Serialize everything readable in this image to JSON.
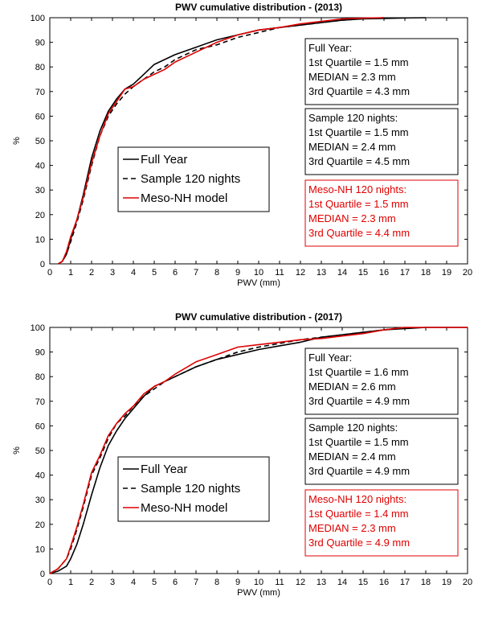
{
  "chart_data": [
    {
      "type": "line",
      "title": "PWV cumulative distribution - (2013)",
      "xlabel": "PWV (mm)",
      "ylabel": "%",
      "xlim": [
        0,
        20
      ],
      "ylim": [
        0,
        100
      ],
      "xticks": [
        "0",
        "1",
        "2",
        "3",
        "4",
        "5",
        "6",
        "7",
        "8",
        "9",
        "10",
        "11",
        "12",
        "13",
        "14",
        "15",
        "16",
        "17",
        "18",
        "19",
        "20"
      ],
      "yticks": [
        "0",
        "10",
        "20",
        "30",
        "40",
        "50",
        "60",
        "70",
        "80",
        "90",
        "100"
      ],
      "grid": false,
      "legend_position": "center-left",
      "legend": [
        "Full Year",
        "Sample 120 nights",
        "Meso-NH model"
      ],
      "series": [
        {
          "name": "Full Year",
          "color": "#000000",
          "dash": "solid",
          "points": [
            [
              0.4,
              0
            ],
            [
              0.6,
              1
            ],
            [
              0.8,
              4
            ],
            [
              1.0,
              10
            ],
            [
              1.3,
              18
            ],
            [
              1.6,
              28
            ],
            [
              2.0,
              43
            ],
            [
              2.4,
              54
            ],
            [
              2.8,
              62
            ],
            [
              3.2,
              67
            ],
            [
              3.6,
              71
            ],
            [
              4.0,
              73
            ],
            [
              4.5,
              77
            ],
            [
              5.0,
              81
            ],
            [
              5.5,
              83
            ],
            [
              6.0,
              85
            ],
            [
              7.0,
              88
            ],
            [
              8.0,
              91
            ],
            [
              9.0,
              93
            ],
            [
              10.0,
              95
            ],
            [
              11.0,
              96
            ],
            [
              12.0,
              97
            ],
            [
              13.0,
              98
            ],
            [
              14.0,
              99
            ],
            [
              15.0,
              99.5
            ],
            [
              16.0,
              99.7
            ],
            [
              17.0,
              99.9
            ],
            [
              18.0,
              100
            ]
          ]
        },
        {
          "name": "Sample 120 nights",
          "color": "#000000",
          "dash": "dashed",
          "points": [
            [
              0.4,
              0
            ],
            [
              0.6,
              1
            ],
            [
              0.8,
              4
            ],
            [
              1.0,
              9
            ],
            [
              1.3,
              17
            ],
            [
              1.6,
              26
            ],
            [
              2.0,
              40
            ],
            [
              2.4,
              52
            ],
            [
              2.8,
              60
            ],
            [
              3.2,
              65
            ],
            [
              3.6,
              69
            ],
            [
              4.0,
              72
            ],
            [
              4.5,
              75
            ],
            [
              5.0,
              78
            ],
            [
              5.5,
              80
            ],
            [
              6.0,
              83
            ],
            [
              7.0,
              87
            ],
            [
              8.0,
              89
            ],
            [
              9.0,
              92
            ],
            [
              10.0,
              94
            ],
            [
              11.0,
              96
            ],
            [
              12.0,
              97
            ],
            [
              13.0,
              98
            ],
            [
              14.0,
              99
            ],
            [
              15.0,
              99.6
            ],
            [
              16.0,
              100
            ]
          ]
        },
        {
          "name": "Meso-NH model",
          "color": "#e00000",
          "dash": "solid",
          "points": [
            [
              0.4,
              0
            ],
            [
              0.6,
              1
            ],
            [
              0.8,
              5
            ],
            [
              1.0,
              11
            ],
            [
              1.3,
              18
            ],
            [
              1.6,
              27
            ],
            [
              2.0,
              41
            ],
            [
              2.4,
              52
            ],
            [
              2.8,
              61
            ],
            [
              3.2,
              66
            ],
            [
              3.6,
              71
            ],
            [
              4.0,
              72
            ],
            [
              4.5,
              75
            ],
            [
              5.0,
              77
            ],
            [
              5.5,
              79
            ],
            [
              6.0,
              82
            ],
            [
              7.0,
              86
            ],
            [
              8.0,
              90
            ],
            [
              9.0,
              93
            ],
            [
              10.0,
              95
            ],
            [
              11.0,
              96
            ],
            [
              12.0,
              97.5
            ],
            [
              13.0,
              98.5
            ],
            [
              14.0,
              99.5
            ],
            [
              15.0,
              99.8
            ],
            [
              16.0,
              100
            ]
          ]
        }
      ],
      "annotations": [
        {
          "color": "#000000",
          "lines": [
            "Full Year:",
            "1st Quartile = 1.5 mm",
            "MEDIAN = 2.3 mm",
            "3rd Quartile = 4.3 mm"
          ]
        },
        {
          "color": "#000000",
          "lines": [
            "Sample 120 nights:",
            "1st Quartile = 1.5 mm",
            "MEDIAN = 2.4 mm",
            "3rd Quartile = 4.5 mm"
          ]
        },
        {
          "color": "#e00000",
          "lines": [
            "Meso-NH 120 nights:",
            "1st Quartile = 1.5 mm",
            "MEDIAN = 2.3 mm",
            "3rd Quartile = 4.4 mm"
          ]
        }
      ]
    },
    {
      "type": "line",
      "title": "PWV cumulative distribution - (2017)",
      "xlabel": "PWV (mm)",
      "ylabel": "%",
      "xlim": [
        0,
        20
      ],
      "ylim": [
        0,
        100
      ],
      "xticks": [
        "0",
        "1",
        "2",
        "3",
        "4",
        "5",
        "6",
        "7",
        "8",
        "9",
        "10",
        "11",
        "12",
        "13",
        "14",
        "15",
        "16",
        "17",
        "18",
        "19",
        "20"
      ],
      "yticks": [
        "0",
        "10",
        "20",
        "30",
        "40",
        "50",
        "60",
        "70",
        "80",
        "90",
        "100"
      ],
      "grid": false,
      "legend_position": "center-left",
      "legend": [
        "Full Year",
        "Sample 120 nights",
        "Meso-NH model"
      ],
      "series": [
        {
          "name": "Full Year",
          "color": "#000000",
          "dash": "solid",
          "points": [
            [
              0,
              0
            ],
            [
              0.4,
              1
            ],
            [
              0.8,
              3
            ],
            [
              1.0,
              6
            ],
            [
              1.3,
              12
            ],
            [
              1.6,
              20
            ],
            [
              2.0,
              32
            ],
            [
              2.4,
              43
            ],
            [
              2.8,
              52
            ],
            [
              3.2,
              58
            ],
            [
              3.6,
              63
            ],
            [
              4.0,
              67
            ],
            [
              4.5,
              72
            ],
            [
              5.0,
              76
            ],
            [
              5.5,
              78
            ],
            [
              6.0,
              80
            ],
            [
              7.0,
              84
            ],
            [
              8.0,
              87
            ],
            [
              9.0,
              89
            ],
            [
              10.0,
              91
            ],
            [
              11.0,
              92.5
            ],
            [
              12.0,
              94
            ],
            [
              13.0,
              96
            ],
            [
              14.0,
              97
            ],
            [
              15.0,
              98
            ],
            [
              16.0,
              99
            ],
            [
              17.0,
              99.5
            ],
            [
              18.0,
              100
            ],
            [
              20.0,
              100
            ]
          ]
        },
        {
          "name": "Sample 120 nights",
          "color": "#000000",
          "dash": "dashed",
          "points": [
            [
              0,
              0
            ],
            [
              0.4,
              2
            ],
            [
              0.8,
              6
            ],
            [
              1.0,
              10
            ],
            [
              1.3,
              18
            ],
            [
              1.6,
              27
            ],
            [
              2.0,
              40
            ],
            [
              2.4,
              47
            ],
            [
              2.8,
              55
            ],
            [
              3.2,
              61
            ],
            [
              3.6,
              64
            ],
            [
              4.0,
              68
            ],
            [
              4.5,
              72
            ],
            [
              5.0,
              75
            ],
            [
              5.5,
              78
            ],
            [
              6.0,
              80
            ],
            [
              7.0,
              84
            ],
            [
              8.0,
              87
            ],
            [
              9.0,
              90
            ],
            [
              10.0,
              92
            ],
            [
              11.0,
              93.5
            ],
            [
              12.0,
              95
            ],
            [
              13.0,
              96
            ],
            [
              14.0,
              97
            ],
            [
              15.0,
              98
            ],
            [
              16.0,
              99
            ],
            [
              17.0,
              100
            ]
          ]
        },
        {
          "name": "Meso-NH model",
          "color": "#e00000",
          "dash": "solid",
          "points": [
            [
              0,
              0
            ],
            [
              0.4,
              2
            ],
            [
              0.8,
              6
            ],
            [
              1.0,
              11
            ],
            [
              1.3,
              19
            ],
            [
              1.6,
              28
            ],
            [
              2.0,
              41
            ],
            [
              2.4,
              48
            ],
            [
              2.8,
              56
            ],
            [
              3.2,
              61
            ],
            [
              3.6,
              65
            ],
            [
              4.0,
              68
            ],
            [
              4.5,
              73
            ],
            [
              5.0,
              76
            ],
            [
              5.5,
              78
            ],
            [
              6.0,
              81
            ],
            [
              7.0,
              86
            ],
            [
              8.0,
              89
            ],
            [
              9.0,
              92
            ],
            [
              10.0,
              93
            ],
            [
              11.0,
              94
            ],
            [
              12.0,
              95
            ],
            [
              13.0,
              95.5
            ],
            [
              14.0,
              96.5
            ],
            [
              15.0,
              97.5
            ],
            [
              16.0,
              99
            ],
            [
              17.0,
              100
            ],
            [
              20.0,
              100
            ]
          ]
        }
      ],
      "annotations": [
        {
          "color": "#000000",
          "lines": [
            "Full Year:",
            "1st Quartile = 1.6 mm",
            "MEDIAN = 2.6 mm",
            "3rd Quartile = 4.9 mm"
          ]
        },
        {
          "color": "#000000",
          "lines": [
            "Sample 120 nights:",
            "1st Quartile = 1.5 mm",
            "MEDIAN = 2.4 mm",
            "3rd Quartile = 4.9 mm"
          ]
        },
        {
          "color": "#e00000",
          "lines": [
            "Meso-NH 120 nights:",
            "1st Quartile = 1.4 mm",
            "MEDIAN = 2.3 mm",
            "3rd Quartile = 4.9 mm"
          ]
        }
      ]
    }
  ]
}
